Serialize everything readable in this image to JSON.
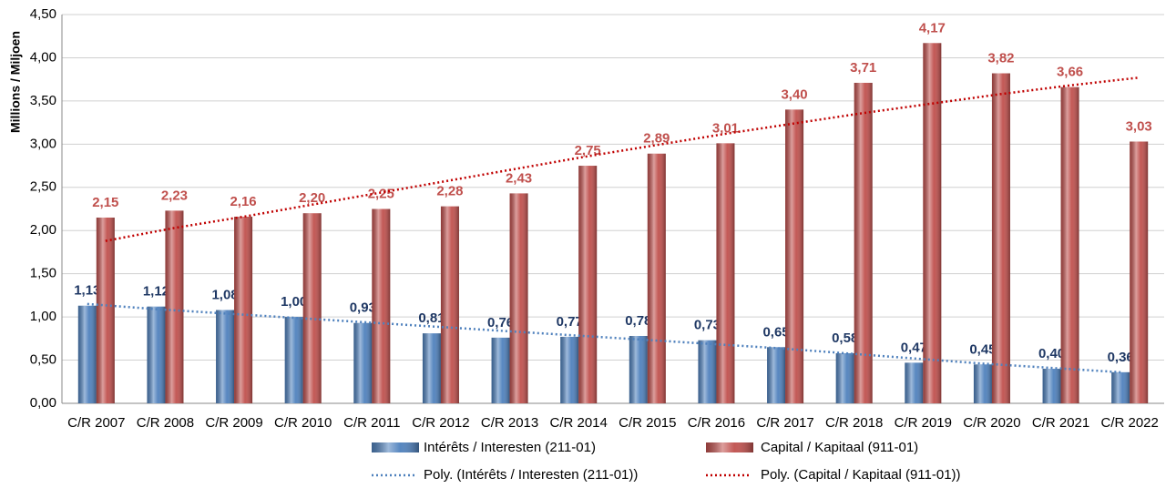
{
  "chart_data": {
    "type": "bar",
    "y_axis_label": "Millions / Miljoen",
    "categories": [
      "C/R 2007",
      "C/R 2008",
      "C/R 2009",
      "C/R 2010",
      "C/R 2011",
      "C/R 2012",
      "C/R 2013",
      "C/R 2014",
      "C/R 2015",
      "C/R 2016",
      "C/R 2017",
      "C/R 2018",
      "C/R 2019",
      "C/R 2020",
      "C/R 2021",
      "C/R 2022"
    ],
    "series": [
      {
        "name": "Intérêts / Interesten (211-01)",
        "color": "#4f81bd",
        "label_color": "#1f3864",
        "values": [
          1.13,
          1.12,
          1.08,
          1.0,
          0.93,
          0.81,
          0.76,
          0.77,
          0.78,
          0.73,
          0.65,
          0.58,
          0.47,
          0.45,
          0.4,
          0.36
        ],
        "value_labels": [
          "1,13",
          "1,12",
          "1,08",
          "1,00",
          "0,93",
          "0,81",
          "0,76",
          "0,77",
          "0,78",
          "0,73",
          "0,65",
          "0,58",
          "0,47",
          "0,45",
          "0,40",
          "0,36"
        ]
      },
      {
        "name": "Capital / Kapitaal (911-01)",
        "color": "#c0504d",
        "label_color": "#c0504d",
        "values": [
          2.15,
          2.23,
          2.16,
          2.2,
          2.25,
          2.28,
          2.43,
          2.75,
          2.89,
          3.01,
          3.4,
          3.71,
          4.17,
          3.82,
          3.66,
          3.03
        ],
        "value_labels": [
          "2,15",
          "2,23",
          "2,16",
          "2,20",
          "2,25",
          "2,28",
          "2,43",
          "2,75",
          "2,89",
          "3,01",
          "3,40",
          "3,71",
          "4,17",
          "3,82",
          "3,66",
          "3,03"
        ]
      }
    ],
    "trendlines": [
      {
        "name": "Poly. (Intérêts / Interesten (211-01))",
        "color": "#4f81bd",
        "values": [
          1.15,
          1.09,
          1.04,
          0.99,
          0.94,
          0.89,
          0.84,
          0.79,
          0.74,
          0.69,
          0.64,
          0.58,
          0.52,
          0.46,
          0.41,
          0.36
        ]
      },
      {
        "name": "Poly. (Capital / Kapitaal (911-01))",
        "color": "#c00000",
        "values": [
          1.88,
          2.03,
          2.16,
          2.3,
          2.44,
          2.58,
          2.72,
          2.86,
          2.99,
          3.12,
          3.24,
          3.36,
          3.47,
          3.58,
          3.68,
          3.77
        ]
      }
    ],
    "ylim": [
      0,
      4.5
    ],
    "yticks": [
      {
        "value": 0,
        "label": "0,00"
      },
      {
        "value": 0.5,
        "label": "0,50"
      },
      {
        "value": 1,
        "label": "1,00"
      },
      {
        "value": 1.5,
        "label": "1,50"
      },
      {
        "value": 2,
        "label": "2,00"
      },
      {
        "value": 2.5,
        "label": "2,50"
      },
      {
        "value": 3,
        "label": "3,00"
      },
      {
        "value": 3.5,
        "label": "3,50"
      },
      {
        "value": 4,
        "label": "4,00"
      },
      {
        "value": 4.5,
        "label": "4,50"
      }
    ],
    "grid": true
  }
}
